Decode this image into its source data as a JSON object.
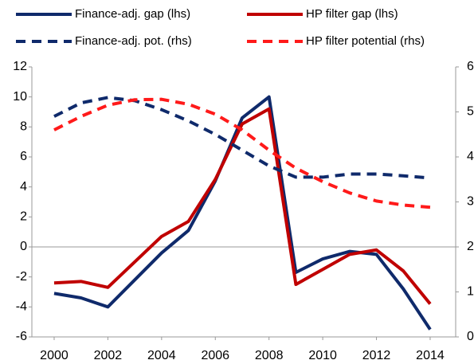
{
  "chart_data": {
    "type": "line",
    "x": [
      2000,
      2001,
      2002,
      2003,
      2004,
      2005,
      2006,
      2007,
      2008,
      2009,
      2010,
      2011,
      2012,
      2013,
      2014
    ],
    "xlim": [
      1999.17,
      2014.95
    ],
    "xticks": [
      2000,
      2002,
      2004,
      2006,
      2008,
      2010,
      2012,
      2014
    ],
    "ylim": [
      -6,
      12
    ],
    "yticks": [
      -6,
      -4,
      -2,
      0,
      2,
      4,
      6,
      8,
      10,
      12
    ],
    "y2lim": [
      0,
      6
    ],
    "y2ticks": [
      0,
      1,
      2,
      3,
      4,
      5,
      6
    ],
    "series": [
      {
        "name": "Finance-adj. gap (lhs)",
        "color": "#0f2a6b",
        "dash": false,
        "values": [
          -3.1,
          -3.4,
          -4.0,
          -2.2,
          -0.4,
          1.1,
          4.4,
          8.6,
          10.0,
          -1.7,
          -0.8,
          -0.3,
          -0.5,
          -2.8,
          -5.5
        ]
      },
      {
        "name": "HP filter gap (lhs)",
        "color": "#c00000",
        "dash": false,
        "values": [
          -2.4,
          -2.3,
          -2.7,
          -1.0,
          0.7,
          1.7,
          4.5,
          8.2,
          9.2,
          -2.5,
          -1.5,
          -0.5,
          -0.2,
          -1.6,
          -3.8
        ]
      },
      {
        "name": "Finance-adj. pot. (rhs)",
        "color": "#0f2a6b",
        "dash": true,
        "axis": "y2",
        "values": [
          4.9,
          5.2,
          5.32,
          5.25,
          5.05,
          4.8,
          4.5,
          4.15,
          3.8,
          3.55,
          3.55,
          3.62,
          3.62,
          3.58,
          3.53
        ]
      },
      {
        "name": "HP filter potential (rhs)",
        "color": "#ff1a1a",
        "dash": true,
        "axis": "y2",
        "values": [
          4.6,
          4.9,
          5.15,
          5.27,
          5.28,
          5.17,
          4.95,
          4.6,
          4.15,
          3.75,
          3.45,
          3.2,
          3.02,
          2.93,
          2.88
        ]
      }
    ]
  }
}
